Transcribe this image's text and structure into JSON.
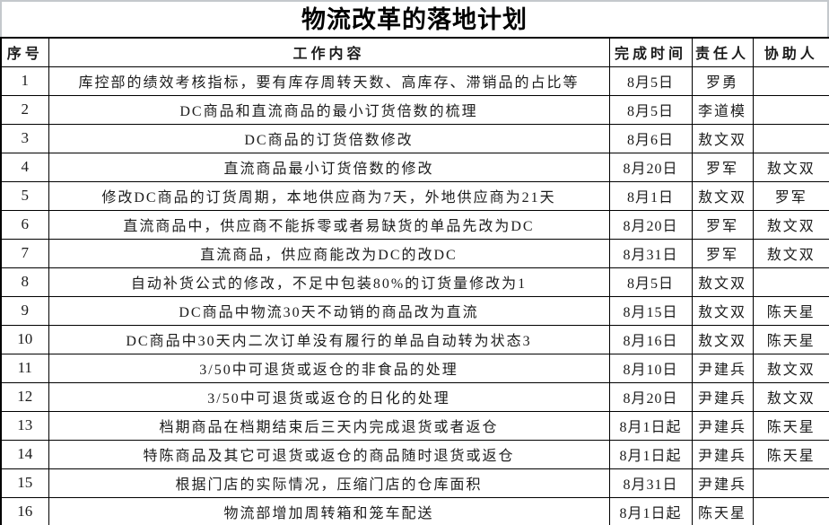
{
  "title": "物流改革的落地计划",
  "table": {
    "headers": [
      "序号",
      "工作内容",
      "完成时间",
      "责任人",
      "协助人"
    ],
    "column_names": [
      "index",
      "task",
      "deadline",
      "owner",
      "assistant"
    ],
    "rows": [
      [
        "1",
        "库控部的绩效考核指标，要有库存周转天数、高库存、滞销品的占比等",
        "8月5日",
        "罗勇",
        ""
      ],
      [
        "2",
        "DC商品和直流商品的最小订货倍数的梳理",
        "8月5日",
        "李道模",
        ""
      ],
      [
        "3",
        "DC商品的订货倍数修改",
        "8月6日",
        "敖文双",
        ""
      ],
      [
        "4",
        "直流商品最小订货倍数的修改",
        "8月20日",
        "罗军",
        "敖文双"
      ],
      [
        "5",
        "修改DC商品的订货周期，本地供应商为7天，外地供应商为21天",
        "8月1日",
        "敖文双",
        "罗军"
      ],
      [
        "6",
        "直流商品中，供应商不能拆零或者易缺货的单品先改为DC",
        "8月20日",
        "罗军",
        "敖文双"
      ],
      [
        "7",
        "直流商品，供应商能改为DC的改DC",
        "8月31日",
        "罗军",
        "敖文双"
      ],
      [
        "8",
        "自动补货公式的修改，不足中包装80%的订货量修改为1",
        "8月5日",
        "敖文双",
        ""
      ],
      [
        "9",
        "DC商品中物流30天不动销的商品改为直流",
        "8月15日",
        "敖文双",
        "陈天星"
      ],
      [
        "10",
        "DC商品中30天内二次订单没有履行的单品自动转为状态3",
        "8月16日",
        "敖文双",
        "陈天星"
      ],
      [
        "11",
        "3/50中可退货或返仓的非食品的处理",
        "8月10日",
        "尹建兵",
        "敖文双"
      ],
      [
        "12",
        "3/50中可退货或返仓的日化的处理",
        "8月20日",
        "尹建兵",
        "敖文双"
      ],
      [
        "13",
        "档期商品在档期结束后三天内完成退货或者返仓",
        "8月1日起",
        "尹建兵",
        "陈天星"
      ],
      [
        "14",
        "特陈商品及其它可退货或返仓的商品随时退货或返仓",
        "8月1日起",
        "尹建兵",
        "陈天星"
      ],
      [
        "15",
        "根据门店的实际情况，压缩门店的仓库面积",
        "8月31日",
        "尹建兵",
        ""
      ],
      [
        "16",
        "物流部增加周转箱和笼车配送",
        "8月1日起",
        "陈天星",
        ""
      ]
    ]
  },
  "colors": {
    "grid_border": "#000000",
    "title_border": "#c4c8cc",
    "text": "#1c1c1c",
    "background": "#ffffff"
  }
}
